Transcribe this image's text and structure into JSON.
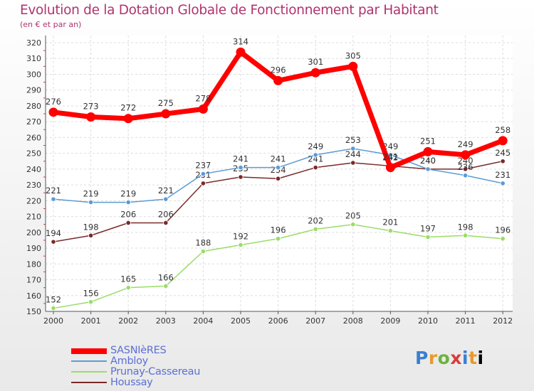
{
  "chart_data": {
    "type": "line",
    "title": "Evolution de la Dotation Globale de Fonctionnement par Habitant",
    "subtitle": "(en € et par an)",
    "xlabel": "",
    "ylabel": "",
    "ylim": [
      150,
      320
    ],
    "ystep": 10,
    "grid": true,
    "categories": [
      "2000",
      "2001",
      "2002",
      "2003",
      "2004",
      "2005",
      "2006",
      "2007",
      "2008",
      "2009",
      "2010",
      "2011",
      "2012"
    ],
    "series": [
      {
        "name": "SASNIèRES",
        "color": "#ff0000",
        "values": [
          276,
          273,
          272,
          275,
          278,
          314,
          296,
          301,
          305,
          241,
          251,
          249,
          258
        ]
      },
      {
        "name": "Ambloy",
        "color": "#5b9bd5",
        "values": [
          221,
          219,
          219,
          221,
          237,
          241,
          241,
          249,
          253,
          249,
          240,
          236,
          231
        ]
      },
      {
        "name": "Prunay-Cassereau",
        "color": "#99dd66",
        "values": [
          152,
          156,
          165,
          166,
          188,
          192,
          196,
          202,
          205,
          201,
          197,
          198,
          196
        ]
      },
      {
        "name": "Houssay",
        "color": "#7a2a2a",
        "values": [
          194,
          198,
          206,
          206,
          231,
          235,
          234,
          241,
          244,
          242,
          240,
          240,
          245
        ]
      }
    ]
  },
  "logo": {
    "text": [
      "P",
      "r",
      "o",
      "x",
      "i",
      "t",
      "i"
    ]
  }
}
